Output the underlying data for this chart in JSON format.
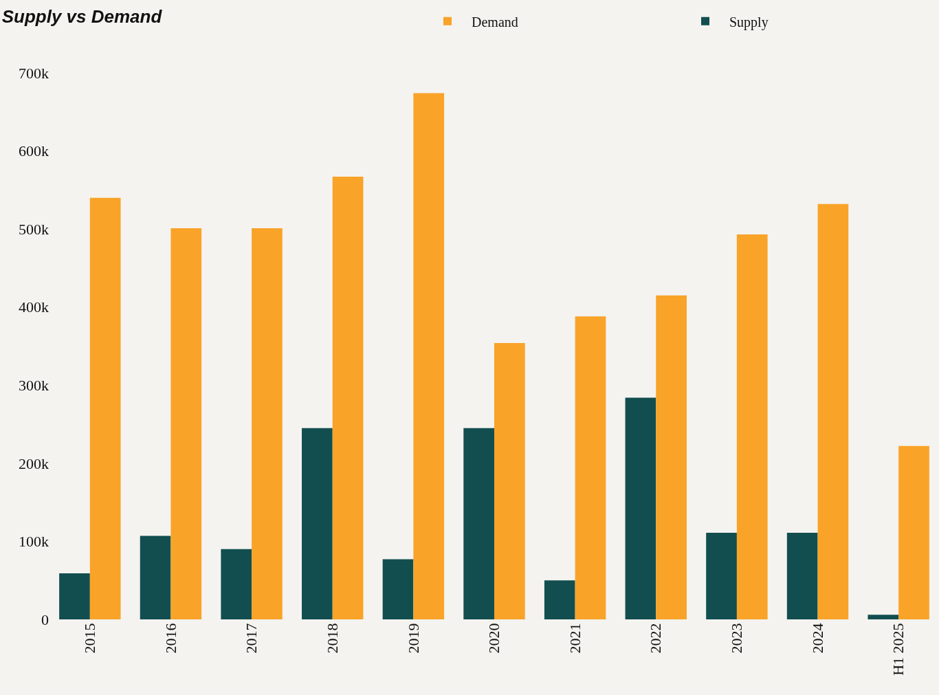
{
  "chart_data": {
    "type": "bar",
    "title": "Supply vs Demand",
    "categories": [
      "2015",
      "2016",
      "2017",
      "2018",
      "2019",
      "2020",
      "2021",
      "2022",
      "2023",
      "2024",
      "H1 2025"
    ],
    "series": [
      {
        "name": "Supply",
        "color": "#124e4f",
        "values": [
          59000,
          107000,
          90000,
          245000,
          77000,
          245000,
          50000,
          284000,
          111000,
          111000,
          6000
        ]
      },
      {
        "name": "Demand",
        "color": "#f9a328",
        "values": [
          540000,
          501000,
          501000,
          567000,
          674000,
          354000,
          388000,
          415000,
          493000,
          532000,
          222000
        ]
      }
    ],
    "ylim": [
      0,
      700000
    ],
    "yticks": [
      0,
      {
        "value": 100000,
        "label": "100k"
      },
      {
        "value": 200000,
        "label": "200k"
      },
      {
        "value": 300000,
        "label": "300k"
      },
      {
        "value": 400000,
        "label": "400k"
      },
      {
        "value": 500000,
        "label": "500k"
      },
      {
        "value": 600000,
        "label": "600k"
      },
      {
        "value": 700000,
        "label": "700k"
      }
    ],
    "grid": false,
    "legend": "top right"
  }
}
